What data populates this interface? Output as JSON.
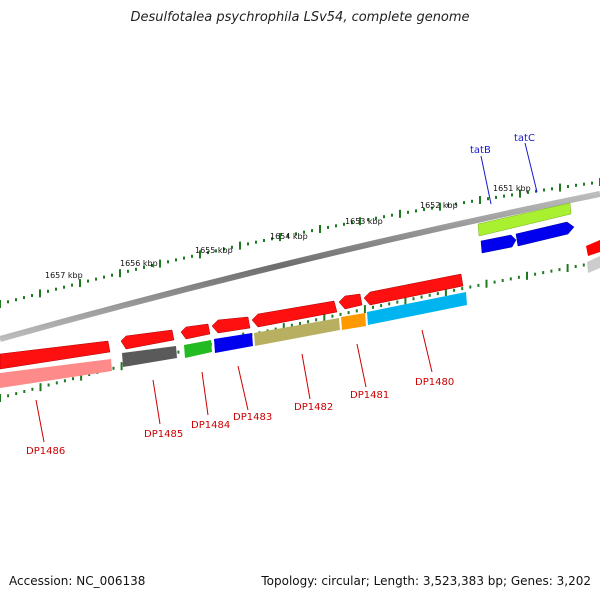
{
  "title": "Desulfotalea psychrophila LSv54, complete genome",
  "accession": "Accession: NC_006138",
  "topology": "Topology: circular; Length: 3,523,383 bp; Genes: 3,202",
  "colors": {
    "backbone": "#8a8a8a",
    "ticks": "#1e7a1e",
    "label_bottom": "#cc0000",
    "label_top": "#1a1acc"
  },
  "kbp_labels": [
    "1657 kbp",
    "1656 kbp",
    "1655 kbp",
    "1654 kbp",
    "1653 kbp",
    "1652 kbp",
    "1651 kbp"
  ],
  "genes_top": [
    {
      "name": "tatB",
      "color": "#0000ee"
    },
    {
      "name": "tatC",
      "color": "#0000ee"
    }
  ],
  "genes_bottom": [
    {
      "name": "DP1486",
      "color": "#ff8a8a"
    },
    {
      "name": "DP1485",
      "color": "#5a5a5a"
    },
    {
      "name": "DP1484",
      "color": "#22bb22"
    },
    {
      "name": "DP1483",
      "color": "#0000ee"
    },
    {
      "name": "DP1482",
      "color": "#b8b060"
    },
    {
      "name": "DP1481",
      "color": "#ff9900"
    },
    {
      "name": "DP1480",
      "color": "#00b4f0"
    }
  ]
}
